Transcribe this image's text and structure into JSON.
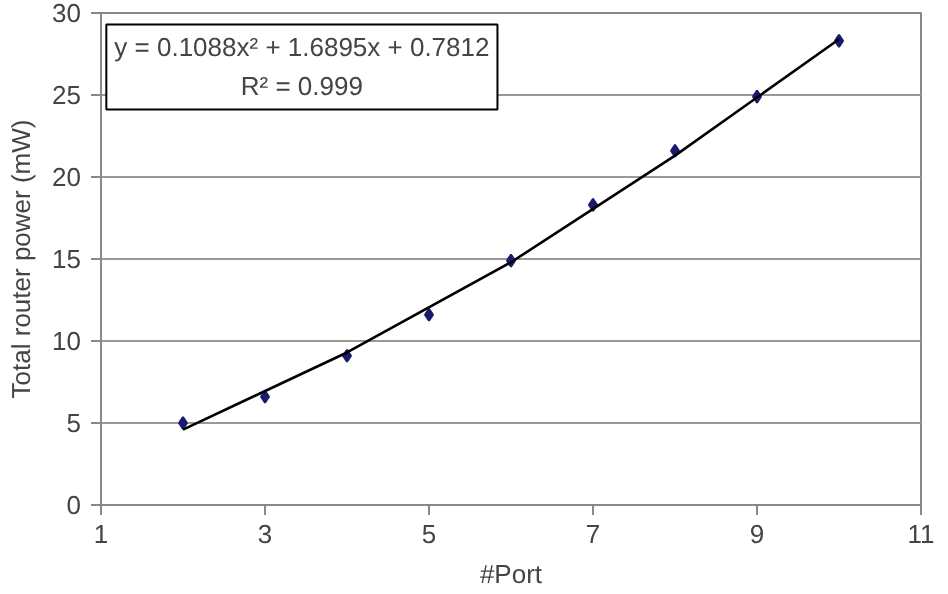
{
  "chart_data": {
    "type": "scatter",
    "xlabel": "#Port",
    "ylabel": "Total router power (mW)",
    "x": [
      2,
      3,
      4,
      5,
      6,
      7,
      8,
      9,
      10
    ],
    "series": [
      {
        "color": "#1a1a6e",
        "marker": "diamond",
        "values": [
          5.0,
          6.6,
          9.1,
          11.6,
          14.9,
          18.3,
          21.6,
          24.9,
          28.3
        ]
      },
      {
        "type": "line",
        "color": "#000000",
        "marker": "none",
        "line_style": "solid",
        "x": [
          2,
          4,
          6,
          8,
          10
        ],
        "values": [
          4.6,
          9.3,
          14.8,
          21.3,
          28.4
        ]
      }
    ],
    "xlim": [
      1,
      11
    ],
    "ylim": [
      0,
      30
    ],
    "xticks": [
      1,
      3,
      5,
      7,
      9,
      11
    ],
    "yticks": [
      0,
      5,
      10,
      15,
      20,
      25,
      30
    ],
    "grid": "y",
    "annotations": [
      "y = 0.1088x² + 1.6895x + 0.7812",
      "R² = 0.999"
    ]
  }
}
